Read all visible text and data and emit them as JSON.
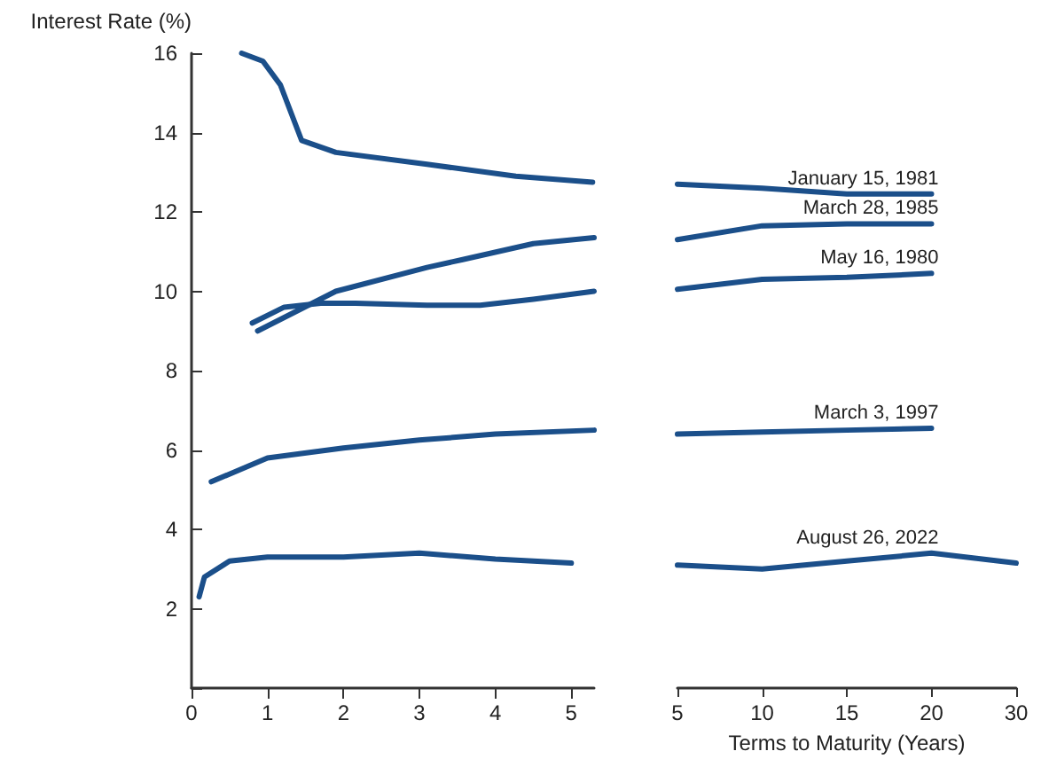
{
  "chart_data": [
    {
      "type": "line",
      "ylabel": "Interest Rate (%)",
      "xlim": [
        0,
        5.3
      ],
      "xticks": [
        0,
        1,
        2,
        3,
        4,
        5
      ],
      "ylim": [
        0,
        16
      ],
      "yticks": [
        {
          "value": 0,
          "label": null
        },
        2,
        4,
        6,
        8,
        10,
        12,
        14,
        16
      ],
      "grid": false,
      "legend": false,
      "marker": "none",
      "line_style": "solid",
      "series": [
        {
          "color": "#1b4f8a",
          "x": [
            0.66,
            0.94,
            1.17,
            1.45,
            1.9,
            3.1,
            4.27,
            5.28
          ],
          "values": [
            16.0,
            15.8,
            15.2,
            13.8,
            13.5,
            13.2,
            12.9,
            12.75
          ]
        },
        {
          "color": "#1b4f8a",
          "x": [
            0.87,
            1.9,
            3.1,
            3.57,
            4.5,
            5.3
          ],
          "values": [
            9.0,
            10.0,
            10.6,
            10.8,
            11.2,
            11.35
          ]
        },
        {
          "color": "#1b4f8a",
          "x": [
            0.8,
            1.22,
            1.7,
            2.16,
            3.1,
            3.8,
            4.5,
            5.3
          ],
          "values": [
            9.2,
            9.6,
            9.7,
            9.7,
            9.65,
            9.65,
            9.8,
            10.0
          ]
        },
        {
          "color": "#1b4f8a",
          "x": [
            0.26,
            1,
            2,
            3,
            4,
            5.3
          ],
          "values": [
            5.2,
            5.8,
            6.05,
            6.25,
            6.4,
            6.5
          ]
        },
        {
          "color": "#1b4f8a",
          "x": [
            0.1,
            0.17,
            0.5,
            1,
            2,
            3,
            4,
            5
          ],
          "values": [
            2.3,
            2.8,
            3.2,
            3.3,
            3.3,
            3.4,
            3.25,
            3.15
          ]
        }
      ]
    },
    {
      "type": "line",
      "xlabel": "Terms to Maturity (Years)",
      "categories": [
        "5",
        "10",
        "15",
        "20",
        "30"
      ],
      "ylim": [
        0,
        16
      ],
      "tick_labels": "x",
      "grid": false,
      "legend": false,
      "marker": "none",
      "line_style": "solid",
      "series": [
        {
          "name": "January 15, 1981",
          "color": "#1b4f8a",
          "values": [
            12.7,
            12.6,
            12.45,
            12.45,
            null
          ]
        },
        {
          "name": "March 28, 1985",
          "color": "#1b4f8a",
          "values": [
            11.3,
            11.65,
            11.7,
            11.7,
            null
          ]
        },
        {
          "name": "May 16, 1980",
          "color": "#1b4f8a",
          "values": [
            10.05,
            10.3,
            10.35,
            10.45,
            null
          ]
        },
        {
          "name": "March 3, 1997",
          "color": "#1b4f8a",
          "values": [
            6.4,
            6.45,
            6.5,
            6.55,
            null
          ]
        },
        {
          "name": "August 26, 2022",
          "color": "#1b4f8a",
          "values": [
            3.1,
            3.0,
            3.2,
            3.4,
            3.15
          ]
        }
      ]
    }
  ]
}
